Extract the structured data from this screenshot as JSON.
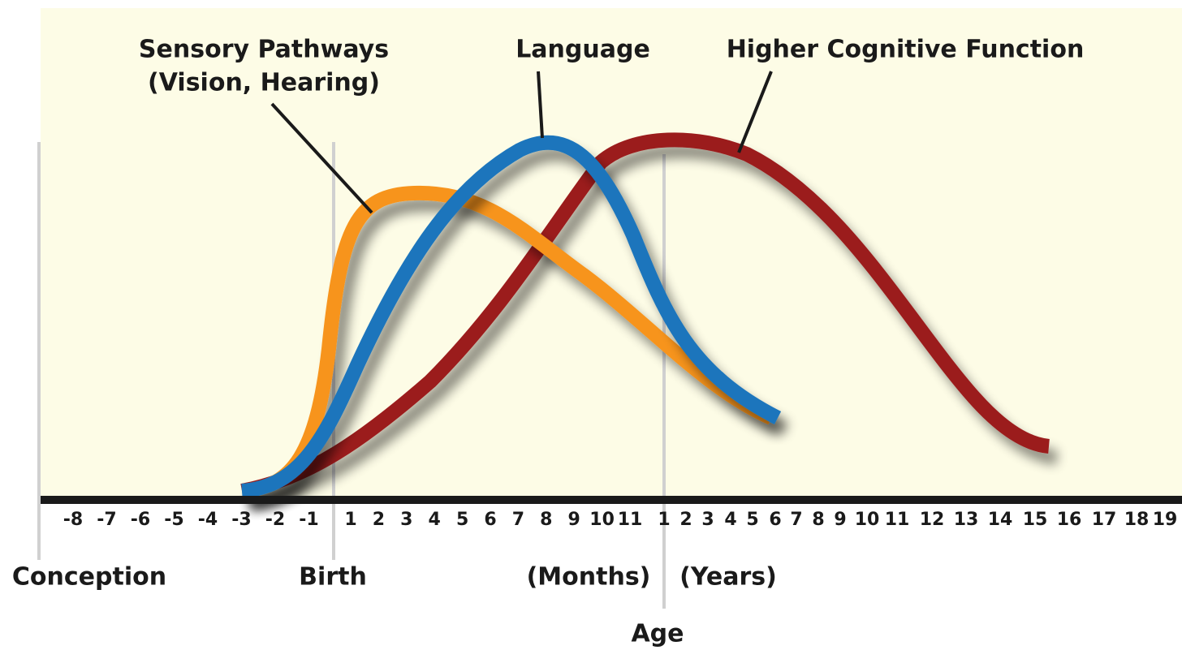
{
  "labels": {
    "sensory_line1": "Sensory Pathways",
    "sensory_line2": "(Vision, Hearing)",
    "language": "Language",
    "higher": "Higher Cognitive Function",
    "conception": "Conception",
    "birth": "Birth",
    "months": "(Months)",
    "years": "(Years)",
    "age": "Age"
  },
  "ticks": {
    "prenatal": [
      "-8",
      "-7",
      "-6",
      "-5",
      "-4",
      "-3",
      "-2",
      "-1"
    ],
    "months": [
      "1",
      "2",
      "3",
      "4",
      "5",
      "6",
      "7",
      "8",
      "9",
      "10",
      "11"
    ],
    "years": [
      "1",
      "2",
      "3",
      "4",
      "5",
      "6",
      "7",
      "8",
      "9",
      "10",
      "11",
      "12",
      "13",
      "14",
      "15",
      "16",
      "17",
      "18",
      "19"
    ]
  }
}
